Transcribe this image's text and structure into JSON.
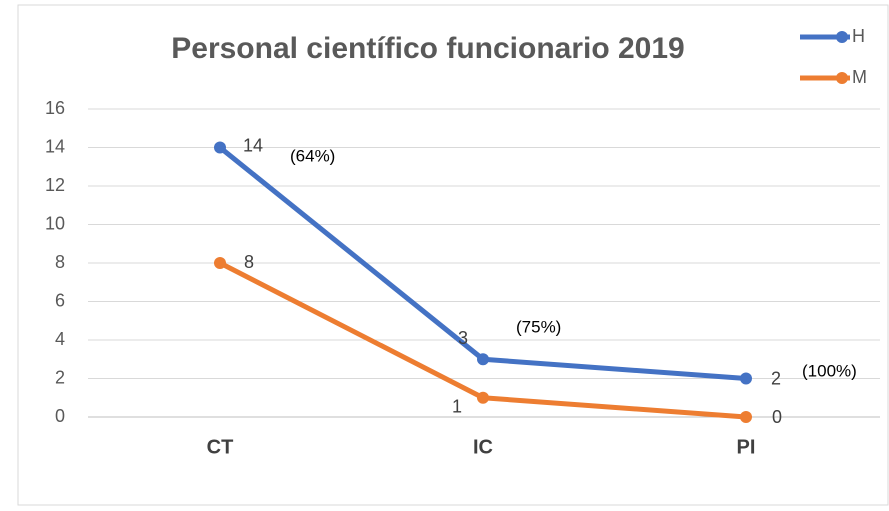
{
  "chart_data": {
    "type": "line",
    "title": "Personal científico funcionario 2019",
    "categories": [
      "CT",
      "IC",
      "PI"
    ],
    "series": [
      {
        "name": "H",
        "color": "#4472c4",
        "values": [
          14,
          3,
          2
        ]
      },
      {
        "name": "M",
        "color": "#ed7d31",
        "values": [
          8,
          1,
          0
        ]
      }
    ],
    "ylim": [
      0,
      16
    ],
    "yticks": [
      0,
      2,
      4,
      6,
      8,
      10,
      12,
      14,
      16
    ],
    "grid": true,
    "legend": "top-right",
    "annotations": [
      "(64%)",
      "(75%)",
      "(100%)"
    ]
  }
}
